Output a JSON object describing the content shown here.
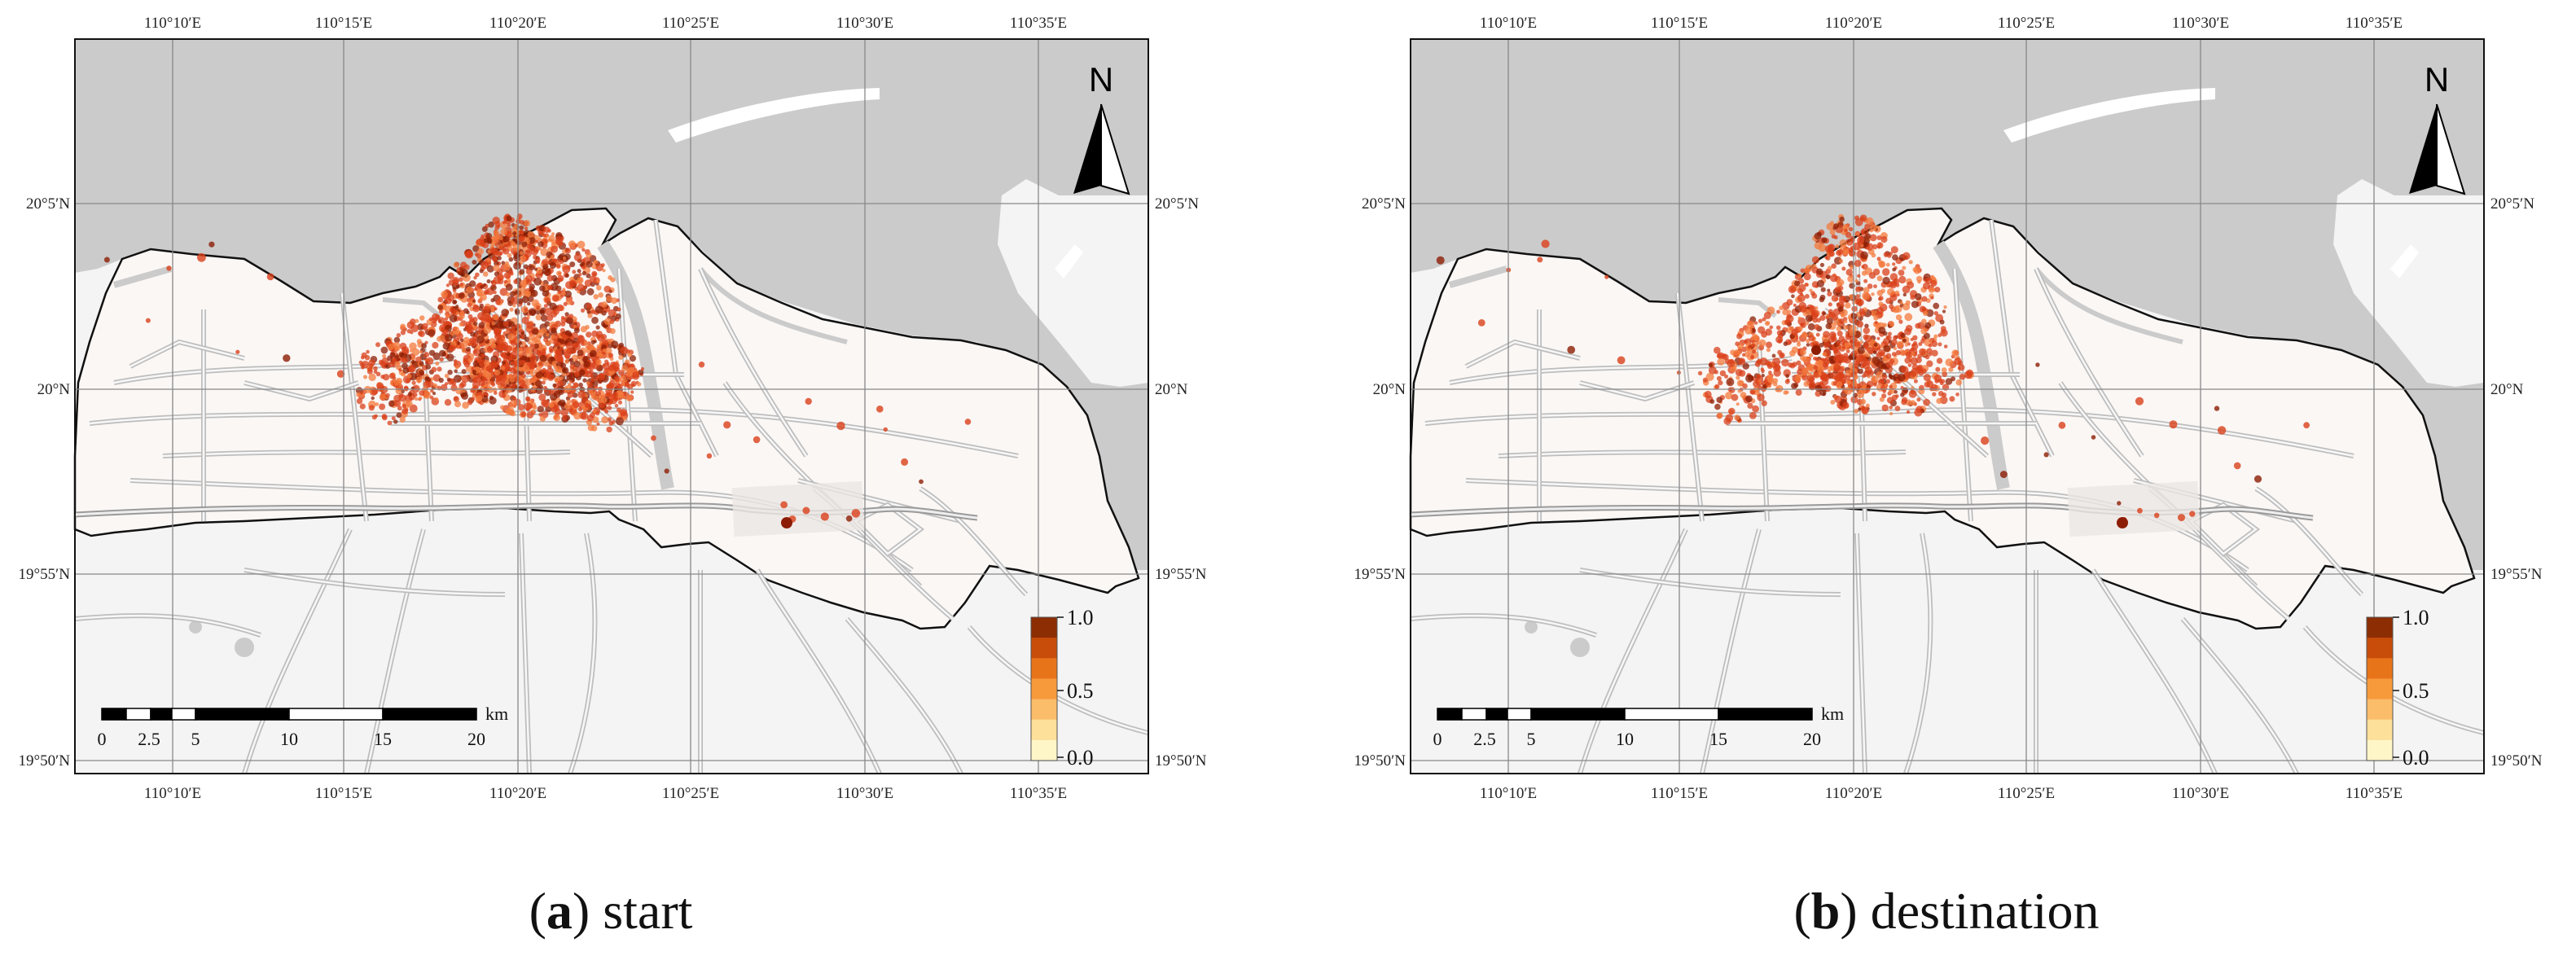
{
  "panels": [
    {
      "id": "a",
      "letter": "a",
      "caption": "start",
      "density_level": "start"
    },
    {
      "id": "b",
      "letter": "b",
      "caption": "destination",
      "density_level": "destination"
    }
  ],
  "axes": {
    "top_labels": [
      "110°10′E",
      "110°15′E",
      "110°20′E",
      "110°25′E",
      "110°30′E",
      "110°35′E"
    ],
    "bottom_labels": [
      "110°10′E",
      "110°15′E",
      "110°20′E",
      "110°25′E",
      "110°30′E",
      "110°35′E"
    ],
    "left_labels": [
      "20°5′N",
      "20°N",
      "19°55′N",
      "19°50′N"
    ],
    "right_labels": [
      "20°5′N",
      "20°N",
      "19°55′N",
      "19°50′N"
    ]
  },
  "scale_bar": {
    "labels": [
      "0",
      "2.5",
      "5",
      "10",
      "15",
      "20"
    ],
    "unit": "km"
  },
  "legend": {
    "max_label": "1.0",
    "mid_label": "0.5",
    "min_label": "0.0",
    "colors": [
      "#8c2d04",
      "#c84d0a",
      "#e8741a",
      "#f79a3c",
      "#fbbd6a",
      "#fde09a",
      "#fff6c8"
    ]
  },
  "north_arrow": {
    "letter": "N"
  },
  "colors": {
    "sea": "#cbcbcb",
    "land_outside": "#f4f4f4",
    "study_area": "#fbf7f5",
    "roads": "#bdbdbd",
    "grid": "#888888",
    "density_dark": "#8c1d04",
    "density_mid": "#d9401a",
    "density_light": "#f47a3c"
  }
}
